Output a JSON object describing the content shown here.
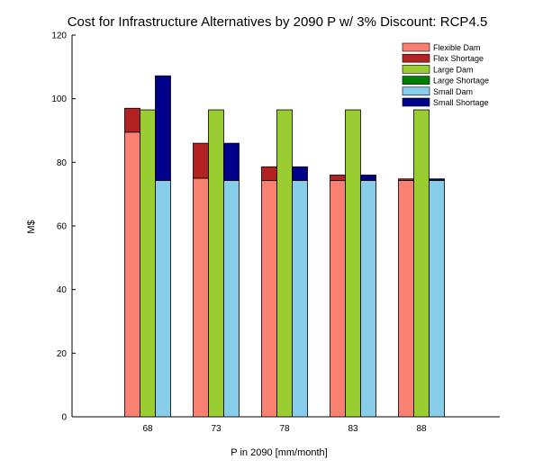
{
  "chart_data": {
    "type": "bar",
    "title": "Cost for Infrastructure Alternatives by 2090 P w/ 3% Discount: RCP4.5",
    "xlabel": "P in 2090 [mm/month]",
    "ylabel": "M$",
    "ylim": [
      0,
      120
    ],
    "yticks": [
      0,
      20,
      40,
      60,
      80,
      100,
      120
    ],
    "categories": [
      "68",
      "73",
      "78",
      "83",
      "88"
    ],
    "groups": [
      {
        "name": "Flexible",
        "dam_label": "Flexible Dam",
        "shortage_label": "Flex Shortage",
        "dam": [
          89.5,
          75.0,
          74.3,
          74.3,
          74.3
        ],
        "shortage": [
          7.5,
          11.0,
          4.3,
          1.7,
          0.5
        ]
      },
      {
        "name": "Large",
        "dam_label": "Large Dam",
        "shortage_label": "Large Shortage",
        "dam": [
          96.5,
          96.5,
          96.5,
          96.5,
          96.5
        ],
        "shortage": [
          0,
          0,
          0,
          0,
          0
        ]
      },
      {
        "name": "Small",
        "dam_label": "Small Dam",
        "shortage_label": "Small Shortage",
        "dam": [
          74.3,
          74.3,
          74.3,
          74.3,
          74.3
        ],
        "shortage": [
          32.9,
          11.7,
          4.3,
          1.7,
          0.5
        ]
      }
    ],
    "colors": {
      "Flexible Dam": "#fa8072",
      "Flex Shortage": "#b22222",
      "Large Dam": "#9acd32",
      "Large Shortage": "#008000",
      "Small Dam": "#87ceeb",
      "Small Shortage": "#00008b"
    },
    "legend": [
      "Flexible Dam",
      "Flex Shortage",
      "Large Dam",
      "Large Shortage",
      "Small Dam",
      "Small Shortage"
    ],
    "legend_position": "top-right",
    "grid": false
  }
}
